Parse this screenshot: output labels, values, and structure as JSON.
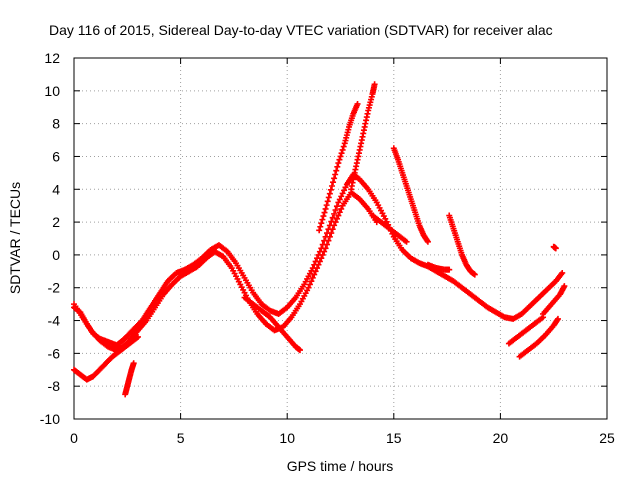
{
  "chart_data": {
    "type": "scatter",
    "title": "Day 116 of 2015, Sidereal Day-to-day VTEC variation (SDTVAR) for receiver alac",
    "xlabel": "GPS time / hours",
    "ylabel": "SDTVAR / TECUs",
    "xlim": [
      0,
      25
    ],
    "ylim": [
      -10,
      12
    ],
    "xticks": [
      "0",
      "5",
      "10",
      "15",
      "20",
      "25"
    ],
    "yticks": [
      "-10",
      "-8",
      "-6",
      "-4",
      "-2",
      "0",
      "2",
      "4",
      "6",
      "8",
      "10",
      "12"
    ],
    "grid": true,
    "marker": "+",
    "color": "#ff0000",
    "series": [
      {
        "points": [
          [
            0.0,
            -3.2
          ],
          [
            0.3,
            -3.5
          ],
          [
            0.6,
            -4.2
          ],
          [
            0.9,
            -4.8
          ],
          [
            1.2,
            -5.1
          ],
          [
            1.6,
            -5.3
          ],
          [
            2.0,
            -5.5
          ],
          [
            2.3,
            -5.2
          ],
          [
            2.6,
            -4.8
          ],
          [
            2.9,
            -4.4
          ],
          [
            3.2,
            -4.0
          ],
          [
            3.5,
            -3.4
          ],
          [
            3.8,
            -2.8
          ],
          [
            4.1,
            -2.2
          ],
          [
            4.4,
            -1.6
          ],
          [
            4.8,
            -1.1
          ],
          [
            5.2,
            -0.9
          ],
          [
            5.6,
            -0.6
          ],
          [
            6.0,
            -0.2
          ],
          [
            6.4,
            0.3
          ],
          [
            6.8,
            0.6
          ],
          [
            7.2,
            0.2
          ],
          [
            7.6,
            -0.5
          ],
          [
            8.0,
            -1.4
          ],
          [
            8.4,
            -2.3
          ],
          [
            8.8,
            -3.0
          ],
          [
            9.2,
            -3.4
          ],
          [
            9.6,
            -3.6
          ],
          [
            10.0,
            -3.2
          ],
          [
            10.4,
            -2.6
          ],
          [
            10.8,
            -1.8
          ],
          [
            11.2,
            -0.8
          ],
          [
            11.6,
            0.4
          ],
          [
            12.0,
            1.8
          ],
          [
            12.4,
            3.2
          ],
          [
            12.8,
            4.3
          ],
          [
            13.1,
            4.9
          ],
          [
            13.4,
            4.6
          ],
          [
            13.8,
            4.0
          ],
          [
            14.2,
            3.2
          ],
          [
            14.6,
            2.2
          ],
          [
            15.0,
            1.1
          ],
          [
            15.4,
            0.3
          ],
          [
            15.8,
            -0.2
          ],
          [
            16.2,
            -0.5
          ],
          [
            16.6,
            -0.7
          ],
          [
            17.0,
            -1.0
          ],
          [
            17.4,
            -1.3
          ],
          [
            17.8,
            -1.6
          ],
          [
            18.2,
            -2.0
          ],
          [
            18.6,
            -2.4
          ],
          [
            19.0,
            -2.8
          ],
          [
            19.4,
            -3.2
          ],
          [
            19.8,
            -3.5
          ],
          [
            20.2,
            -3.8
          ],
          [
            20.6,
            -3.9
          ],
          [
            21.0,
            -3.6
          ],
          [
            21.4,
            -3.1
          ],
          [
            21.8,
            -2.6
          ],
          [
            22.2,
            -2.1
          ],
          [
            22.6,
            -1.6
          ],
          [
            22.9,
            -1.1
          ]
        ]
      },
      {
        "points": [
          [
            0.0,
            -3.0
          ],
          [
            0.4,
            -3.8
          ],
          [
            0.8,
            -4.6
          ],
          [
            1.2,
            -5.2
          ],
          [
            1.6,
            -5.6
          ],
          [
            2.0,
            -5.8
          ],
          [
            2.3,
            -5.6
          ],
          [
            2.6,
            -5.2
          ],
          [
            3.0,
            -4.6
          ],
          [
            3.4,
            -4.0
          ],
          [
            3.8,
            -3.2
          ],
          [
            4.2,
            -2.4
          ],
          [
            4.6,
            -1.8
          ],
          [
            5.0,
            -1.3
          ],
          [
            5.4,
            -1.0
          ],
          [
            5.8,
            -0.7
          ],
          [
            6.2,
            -0.2
          ],
          [
            6.6,
            0.2
          ],
          [
            7.0,
            -0.1
          ],
          [
            7.4,
            -0.8
          ],
          [
            7.8,
            -1.8
          ],
          [
            8.2,
            -2.8
          ],
          [
            8.6,
            -3.6
          ],
          [
            9.0,
            -4.2
          ],
          [
            9.4,
            -4.6
          ],
          [
            9.8,
            -4.4
          ],
          [
            10.2,
            -3.8
          ],
          [
            10.6,
            -3.0
          ],
          [
            11.0,
            -2.0
          ],
          [
            11.4,
            -0.8
          ],
          [
            11.8,
            0.4
          ],
          [
            12.2,
            1.8
          ],
          [
            12.6,
            3.0
          ],
          [
            13.0,
            3.8
          ],
          [
            13.4,
            3.4
          ],
          [
            13.8,
            2.8
          ],
          [
            14.2,
            2.0
          ]
        ]
      },
      {
        "points": [
          [
            0.0,
            -7.0
          ],
          [
            0.3,
            -7.3
          ],
          [
            0.6,
            -7.6
          ],
          [
            0.9,
            -7.4
          ],
          [
            1.2,
            -7.0
          ],
          [
            1.5,
            -6.6
          ],
          [
            1.8,
            -6.2
          ],
          [
            2.1,
            -5.9
          ],
          [
            2.4,
            -5.6
          ],
          [
            2.7,
            -5.3
          ],
          [
            3.0,
            -5.0
          ]
        ]
      },
      {
        "points": [
          [
            2.4,
            -8.5
          ],
          [
            2.5,
            -8.0
          ],
          [
            2.6,
            -7.5
          ],
          [
            2.7,
            -7.0
          ],
          [
            2.8,
            -6.6
          ]
        ]
      },
      {
        "points": [
          [
            8.0,
            -2.6
          ],
          [
            8.4,
            -3.0
          ],
          [
            8.8,
            -3.4
          ],
          [
            9.2,
            -3.8
          ],
          [
            9.6,
            -4.4
          ],
          [
            10.0,
            -5.0
          ],
          [
            10.4,
            -5.6
          ],
          [
            10.6,
            -5.8
          ]
        ]
      },
      {
        "points": [
          [
            11.5,
            1.5
          ],
          [
            11.8,
            2.8
          ],
          [
            12.1,
            4.2
          ],
          [
            12.4,
            5.6
          ],
          [
            12.7,
            6.8
          ],
          [
            12.9,
            7.8
          ],
          [
            13.1,
            8.6
          ],
          [
            13.3,
            9.2
          ]
        ]
      },
      {
        "points": [
          [
            13.0,
            4.0
          ],
          [
            13.2,
            5.2
          ],
          [
            13.4,
            6.4
          ],
          [
            13.6,
            7.6
          ],
          [
            13.8,
            8.8
          ],
          [
            14.0,
            9.8
          ],
          [
            14.1,
            10.4
          ]
        ]
      },
      {
        "points": [
          [
            15.0,
            6.5
          ],
          [
            15.2,
            5.8
          ],
          [
            15.4,
            5.0
          ],
          [
            15.6,
            4.2
          ],
          [
            15.8,
            3.4
          ],
          [
            16.0,
            2.6
          ],
          [
            16.2,
            1.8
          ],
          [
            16.4,
            1.2
          ],
          [
            16.6,
            0.8
          ]
        ]
      },
      {
        "points": [
          [
            14.0,
            2.4
          ],
          [
            14.4,
            2.0
          ],
          [
            14.8,
            1.6
          ],
          [
            15.2,
            1.2
          ],
          [
            15.6,
            0.8
          ]
        ]
      },
      {
        "points": [
          [
            17.6,
            2.4
          ],
          [
            17.8,
            1.6
          ],
          [
            18.0,
            0.8
          ],
          [
            18.2,
            0.0
          ],
          [
            18.4,
            -0.6
          ],
          [
            18.6,
            -1.0
          ],
          [
            18.8,
            -1.2
          ]
        ]
      },
      {
        "points": [
          [
            16.6,
            -0.6
          ],
          [
            17.0,
            -0.8
          ],
          [
            17.4,
            -0.9
          ],
          [
            17.6,
            -0.9
          ]
        ]
      },
      {
        "points": [
          [
            20.4,
            -5.4
          ],
          [
            20.8,
            -5.0
          ],
          [
            21.2,
            -4.6
          ],
          [
            21.6,
            -4.2
          ],
          [
            22.0,
            -3.8
          ]
        ]
      },
      {
        "points": [
          [
            20.9,
            -6.2
          ],
          [
            21.3,
            -5.8
          ],
          [
            21.7,
            -5.4
          ],
          [
            22.1,
            -4.9
          ],
          [
            22.5,
            -4.3
          ],
          [
            22.7,
            -3.9
          ]
        ]
      },
      {
        "points": [
          [
            22.0,
            -3.6
          ],
          [
            22.4,
            -3.0
          ],
          [
            22.8,
            -2.4
          ],
          [
            23.0,
            -1.9
          ]
        ]
      },
      {
        "points": [
          [
            22.5,
            0.5
          ],
          [
            22.6,
            0.4
          ]
        ]
      }
    ]
  }
}
